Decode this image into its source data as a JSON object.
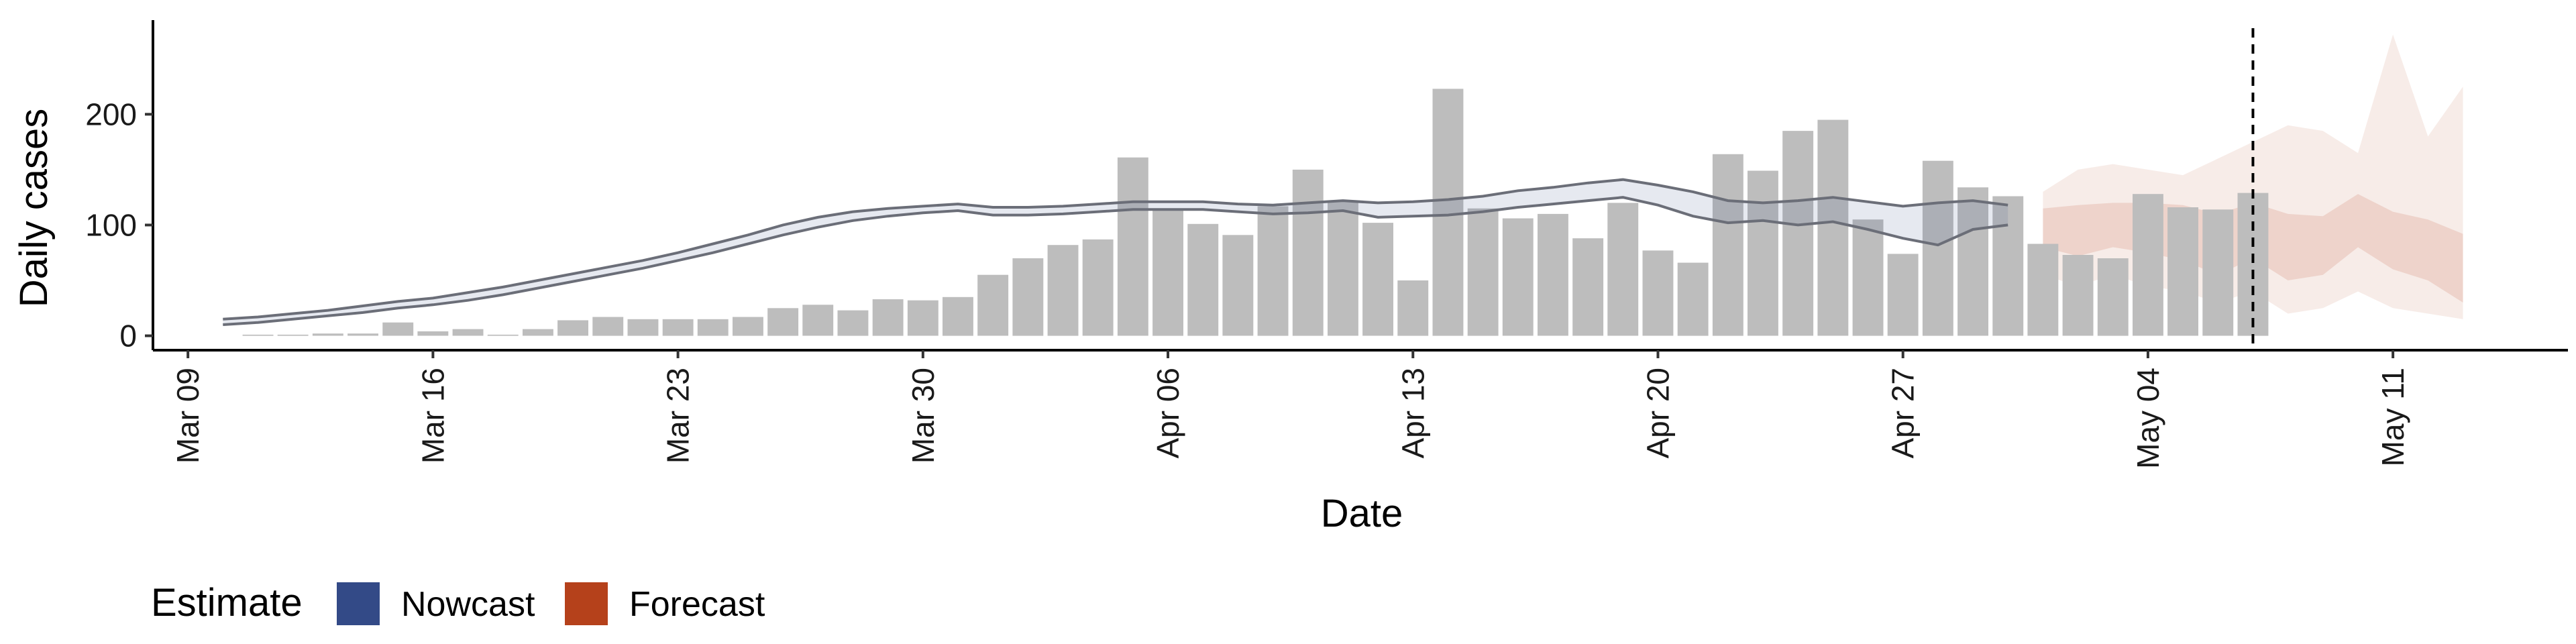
{
  "chart_data": {
    "type": "bar",
    "xlabel": "Date",
    "ylabel": "Daily cases",
    "ylim": [
      -13,
      285
    ],
    "yticks": [
      0,
      100,
      200
    ],
    "xlim_dates": [
      "2020-03-08",
      "2020-05-16"
    ],
    "xticks": [
      {
        "date": "2020-03-09",
        "label": "Mar 09"
      },
      {
        "date": "2020-03-16",
        "label": "Mar 16"
      },
      {
        "date": "2020-03-23",
        "label": "Mar 23"
      },
      {
        "date": "2020-03-30",
        "label": "Mar 30"
      },
      {
        "date": "2020-04-06",
        "label": "Apr 06"
      },
      {
        "date": "2020-04-13",
        "label": "Apr 13"
      },
      {
        "date": "2020-04-20",
        "label": "Apr 20"
      },
      {
        "date": "2020-04-27",
        "label": "Apr 27"
      },
      {
        "date": "2020-05-04",
        "label": "May 04"
      },
      {
        "date": "2020-05-11",
        "label": "May 11"
      }
    ],
    "bar_color": "#bdbdbd",
    "bars": {
      "start_date": "2020-03-11",
      "values": [
        1,
        1,
        2,
        2,
        12,
        4,
        6,
        1,
        6,
        14,
        17,
        15,
        15,
        15,
        17,
        25,
        28,
        23,
        33,
        32,
        35,
        55,
        70,
        82,
        87,
        161,
        113,
        101,
        91,
        117,
        150,
        122,
        102,
        50,
        223,
        115,
        106,
        110,
        88,
        120,
        77,
        66,
        164,
        149,
        185,
        195,
        105,
        74,
        158,
        134,
        126,
        83,
        73,
        70,
        128,
        116,
        114,
        129
      ]
    },
    "nowcast": {
      "name": "Nowcast",
      "color": "#334a87",
      "start_date": "2020-03-10",
      "median": [
        12,
        14,
        17,
        20,
        24,
        28,
        31,
        35,
        40,
        46,
        52,
        58,
        64,
        71,
        79,
        87,
        95,
        103,
        108,
        112,
        114,
        116,
        113,
        113,
        114,
        116,
        118,
        118,
        118,
        116,
        115,
        116,
        118,
        114,
        115,
        116,
        119,
        124,
        127,
        131,
        135,
        130,
        124,
        116,
        112,
        113,
        115,
        109,
        103,
        104,
        108,
        110
      ],
      "lower": [
        10,
        12,
        15,
        18,
        21,
        25,
        28,
        32,
        37,
        43,
        49,
        55,
        61,
        68,
        75,
        83,
        91,
        98,
        104,
        108,
        111,
        113,
        109,
        109,
        110,
        112,
        114,
        114,
        114,
        112,
        110,
        111,
        113,
        107,
        108,
        109,
        112,
        116,
        119,
        122,
        125,
        118,
        108,
        102,
        104,
        100,
        103,
        96,
        88,
        82,
        96,
        100
      ],
      "upper": [
        15,
        17,
        20,
        23,
        27,
        31,
        34,
        39,
        44,
        50,
        56,
        62,
        68,
        75,
        83,
        91,
        100,
        107,
        112,
        115,
        117,
        119,
        116,
        116,
        117,
        119,
        121,
        121,
        121,
        119,
        118,
        120,
        122,
        120,
        121,
        123,
        126,
        131,
        134,
        138,
        141,
        136,
        130,
        122,
        120,
        122,
        125,
        121,
        117,
        120,
        122,
        118
      ]
    },
    "forecast": {
      "name": "Forecast",
      "color": "#b5411b",
      "start_date": "2020-05-01",
      "median": [
        98,
        95,
        100,
        97,
        92,
        86,
        93,
        78,
        80,
        105,
        88,
        80,
        70
      ],
      "inner_lower": [
        80,
        72,
        80,
        75,
        68,
        55,
        70,
        50,
        55,
        80,
        60,
        50,
        30
      ],
      "inner_upper": [
        115,
        118,
        120,
        120,
        118,
        110,
        120,
        110,
        108,
        128,
        112,
        105,
        92
      ],
      "outer_lower": [
        55,
        45,
        55,
        45,
        40,
        30,
        40,
        20,
        25,
        40,
        25,
        20,
        15
      ],
      "outer_upper": [
        130,
        150,
        155,
        150,
        145,
        160,
        175,
        190,
        185,
        165,
        272,
        180,
        225
      ]
    },
    "vline_date": "2020-05-07",
    "legend": {
      "title": "Estimate",
      "position": "bottom-left",
      "items": [
        {
          "label": "Nowcast",
          "color": "#334a87"
        },
        {
          "label": "Forecast",
          "color": "#b5411b"
        }
      ]
    }
  }
}
